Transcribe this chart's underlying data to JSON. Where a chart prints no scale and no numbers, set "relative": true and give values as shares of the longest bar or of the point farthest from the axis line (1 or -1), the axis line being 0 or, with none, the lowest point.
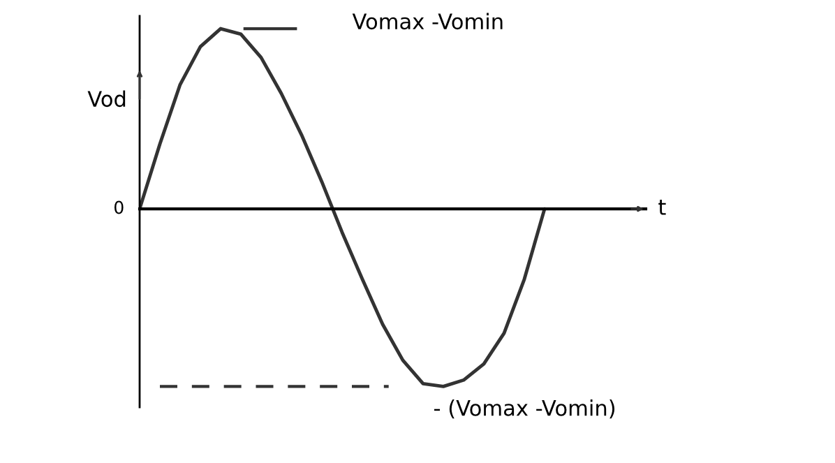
{
  "chart_data": {
    "type": "line",
    "relative": true,
    "xlabel": "t",
    "ylabel": "Vod",
    "categories": [
      null,
      null,
      null,
      null,
      null,
      null,
      null,
      null,
      null,
      null,
      null,
      null,
      null,
      null,
      null,
      null,
      null,
      null,
      null,
      null,
      null
    ],
    "series": [
      {
        "color": "#333333",
        "values": [
          0,
          0.36,
          0.69,
          0.9,
          1.0,
          0.97,
          0.84,
          0.64,
          0.41,
          0.15,
          -0.13,
          -0.39,
          -0.64,
          -0.84,
          -0.97,
          -0.985,
          -0.95,
          -0.86,
          -0.69,
          -0.39,
          0
        ]
      }
    ],
    "ref_lines": [
      {
        "axis": "y",
        "value": 1.0,
        "label": "Vomax -Vomin",
        "line_style": "solid",
        "color": "#333333"
      },
      {
        "axis": "y",
        "value": -0.985,
        "label": "- (Vomax -Vomin)",
        "line_style": "dashed",
        "color": "#333333"
      }
    ],
    "annotations": [
      "0"
    ],
    "marker": "none",
    "line_style": "solid"
  }
}
